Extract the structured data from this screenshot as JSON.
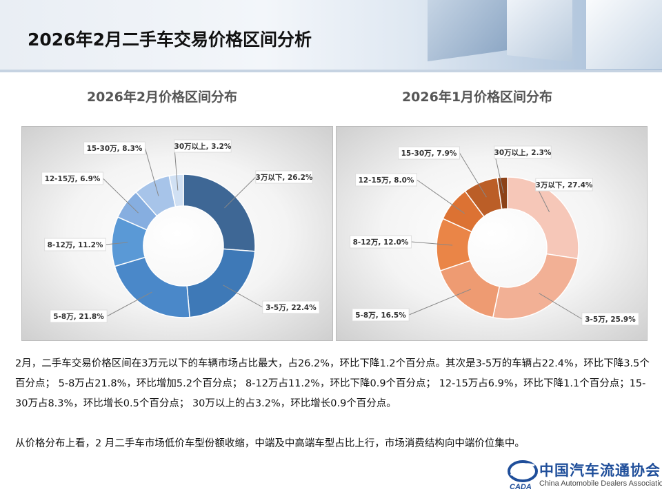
{
  "page": {
    "title": "2026年2月二手车交易价格区间分析",
    "paragraphs": [
      "2月，二手车交易价格区间在3万元以下的车辆市场占比最大，占26.2%，环比下降1.2个百分点。其次是3-5万的车辆占22.4%，环比下降3.5个百分点； 5-8万占21.8%，环比增加5.2个百分点； 8-12万占11.2%，环比下降0.9个百分点； 12-15万占6.9%，环比下降1.1个百分点；15-30万占8.3%，环比增长0.5个百分点； 30万以上的占3.2%，环比增长0.9个百分点。",
      "从价格分布上看，2 月二手车市场低价车型份额收缩，中端及中高端车型占比上行，市场消费结构向中端价位集中。"
    ],
    "logo": {
      "name_cn": "中国汽车流通协会",
      "name_en": "China Automobile Dealers Association",
      "mark_text": "CADA"
    }
  },
  "chart_data": [
    {
      "type": "pie",
      "style": "donut",
      "title": "2026年2月价格区间分布",
      "categories": [
        "3万以下",
        "3-5万",
        "5-8万",
        "8-12万",
        "12-15万",
        "15-30万",
        "30万以上"
      ],
      "values": [
        26.2,
        22.4,
        21.8,
        11.2,
        6.9,
        8.3,
        3.2
      ],
      "unit": "%",
      "colors": [
        "#3e6795",
        "#3e79b7",
        "#4a88c9",
        "#5a99d6",
        "#86aee0",
        "#a7c4e9",
        "#d0e0f3"
      ],
      "data_labels": [
        "3万以下, 26.2%",
        "3-5万, 22.4%",
        "5-8万, 21.8%",
        "8-12万, 11.2%",
        "12-15万, 6.9%",
        "15-30万, 8.3%",
        "30万以上, 3.2%"
      ]
    },
    {
      "type": "pie",
      "style": "donut",
      "title": "2026年1月价格区间分布",
      "categories": [
        "3万以下",
        "3-5万",
        "5-8万",
        "8-12万",
        "12-15万",
        "15-30万",
        "30万以上"
      ],
      "values": [
        27.4,
        25.9,
        16.5,
        12.0,
        8.0,
        7.9,
        2.3
      ],
      "unit": "%",
      "colors": [
        "#f6c7b8",
        "#f2b095",
        "#ee9b72",
        "#ea8547",
        "#dc7233",
        "#bb5e27",
        "#8c4218"
      ],
      "data_labels": [
        "3万以下, 27.4%",
        "3-5万, 25.9%",
        "5-8万, 16.5%",
        "8-12万, 12.0%",
        "12-15万, 8.0%",
        "15-30万, 7.9%",
        "30万以上, 2.3%"
      ]
    }
  ]
}
